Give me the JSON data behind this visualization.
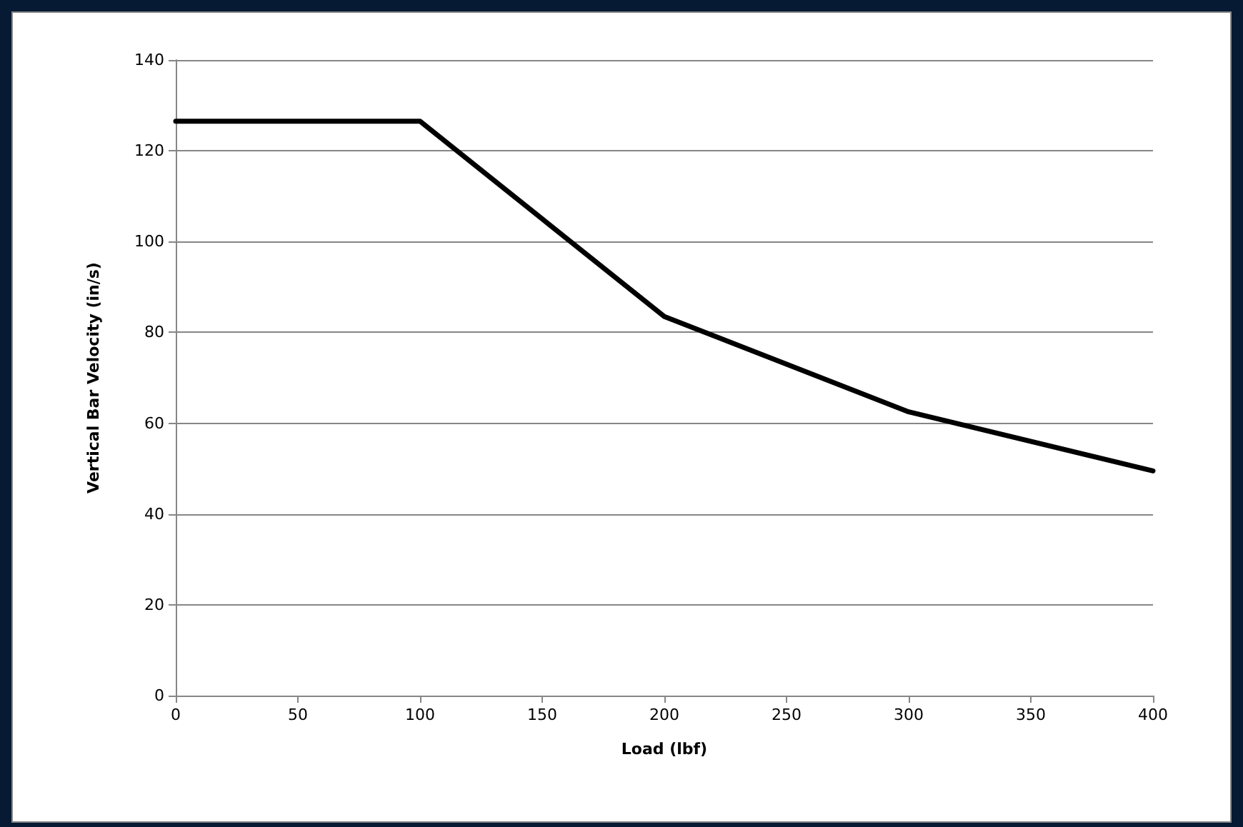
{
  "chart_data": {
    "type": "line",
    "xlabel": "Load (lbf)",
    "ylabel": "Vertical Bar Velocity (in/s)",
    "x": [
      0,
      100,
      200,
      300,
      400
    ],
    "series": [
      {
        "color": "#000000",
        "values": [
          126.5,
          126.5,
          83.5,
          62.5,
          49.5
        ]
      }
    ],
    "xlim": [
      0,
      400
    ],
    "xticks": [
      0,
      50,
      100,
      150,
      200,
      250,
      300,
      350,
      400
    ],
    "ylim": [
      0,
      140
    ],
    "yticks": [
      0,
      20,
      40,
      60,
      80,
      100,
      120,
      140
    ],
    "grid": "y",
    "marker": "none",
    "line_style": "solid"
  }
}
